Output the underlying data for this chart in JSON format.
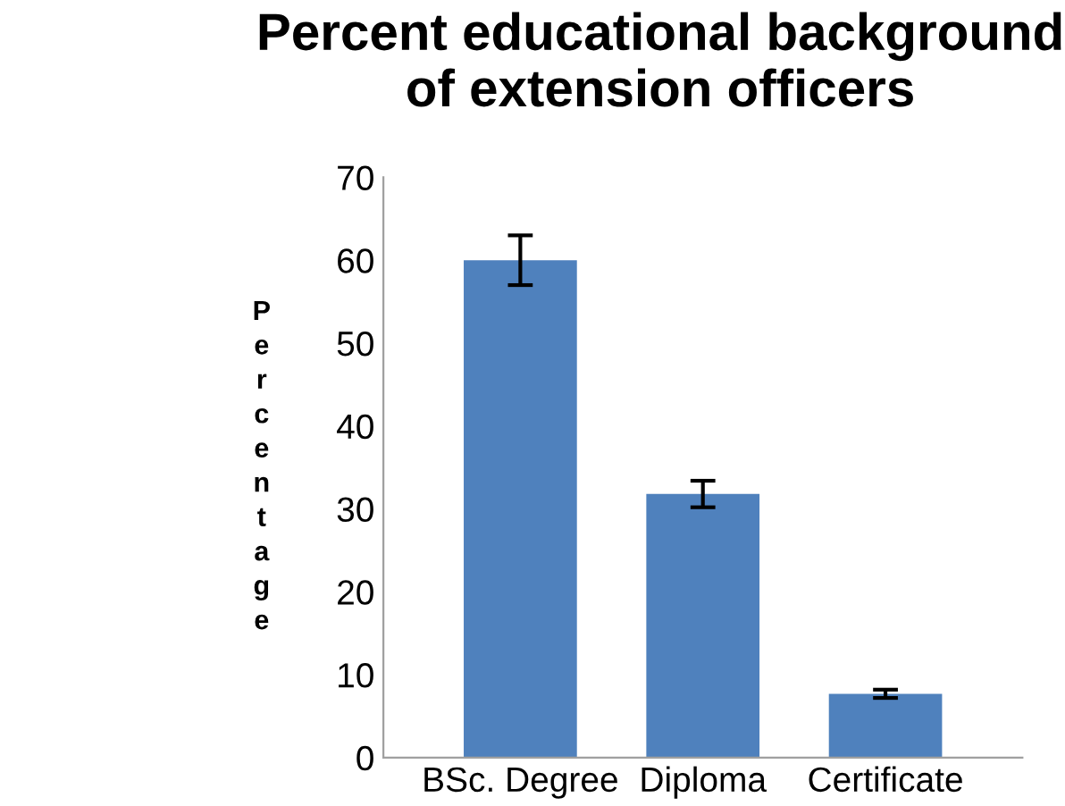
{
  "chart_data": {
    "type": "bar",
    "title": "Percent educational background of extension officers",
    "ylabel": "Percentage",
    "categories": [
      "BSc. Degree",
      "Diploma",
      "Certificate"
    ],
    "values": [
      60,
      31.8,
      7.7
    ],
    "errors": [
      3,
      1.6,
      0.5
    ],
    "color": "#4f81bd",
    "ylim": [
      0,
      70
    ],
    "yticks": [
      0,
      10,
      20,
      30,
      40,
      50,
      60,
      70
    ],
    "grid": false
  }
}
